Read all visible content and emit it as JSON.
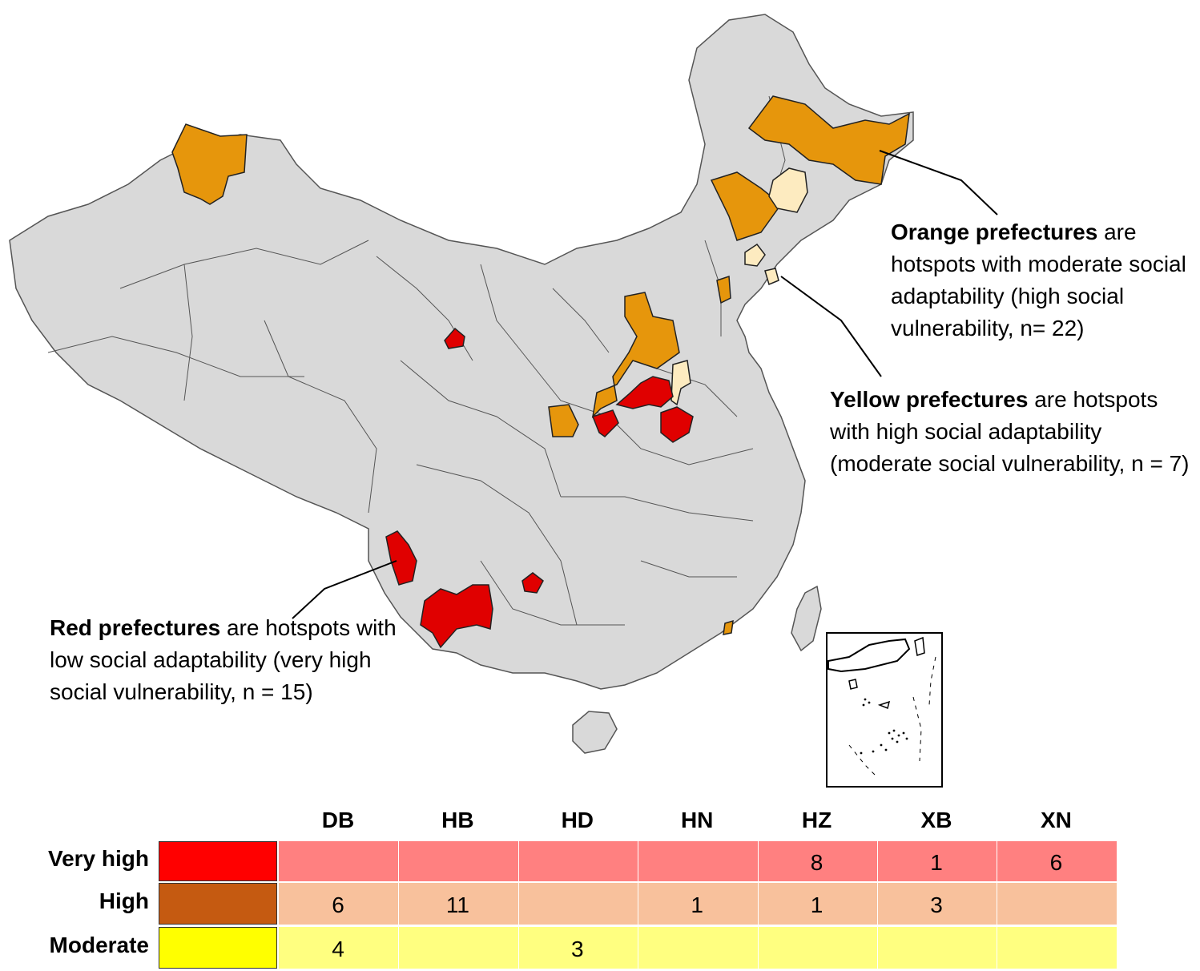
{
  "callouts": {
    "orange": {
      "bold": "Orange prefectures",
      "rest": " are hotspots  with moderate social adaptability  (high social vulnerability, n= 22)"
    },
    "yellow": {
      "bold": "Yellow prefectures",
      "rest": " are hotspots with high social adaptability  (moderate social vulnerability, n = 7)"
    },
    "red": {
      "bold": "Red prefectures",
      "rest": " are hotspots with low social adaptability  (very high social vulnerability, n = 15)"
    }
  },
  "colors": {
    "base_land": "#d9d9d9",
    "border": "#555555",
    "orange_region": "#e6960c",
    "yellow_region": "#fdebc0",
    "red_region": "#e00000",
    "very_high_swatch": "#ff0000",
    "high_swatch": "#c55a11",
    "moderate_swatch": "#ffff00",
    "very_high_band": "#ff8080",
    "high_band": "#f8c19c",
    "moderate_band": "#ffff80"
  },
  "table": {
    "columns": [
      "DB",
      "HB",
      "HD",
      "HN",
      "HZ",
      "XB",
      "XN"
    ],
    "rows": [
      {
        "label": "Very high",
        "values": [
          "",
          "",
          "",
          "",
          "8",
          "1",
          "6"
        ]
      },
      {
        "label": "High",
        "values": [
          "6",
          "11",
          "",
          "1",
          "1",
          "3",
          ""
        ]
      },
      {
        "label": "Moderate",
        "values": [
          "4",
          "",
          "3",
          "",
          "",
          "",
          ""
        ]
      }
    ]
  }
}
